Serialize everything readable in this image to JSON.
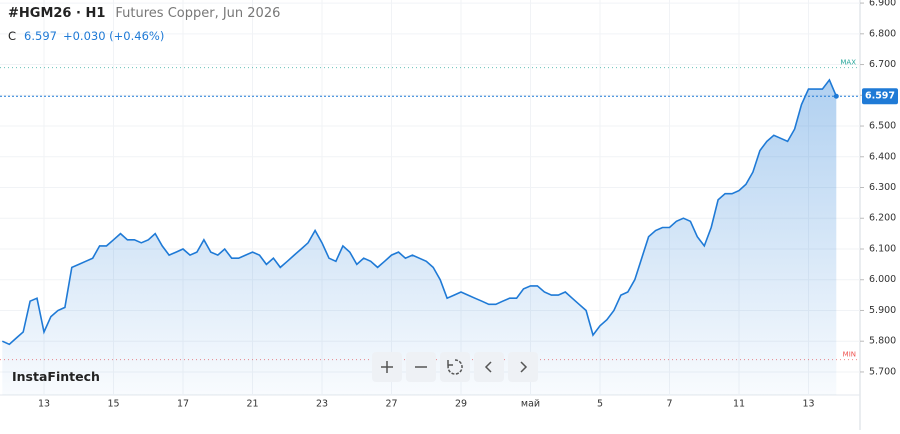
{
  "header": {
    "symbol": "#HGM26 · H1",
    "description": "Futures Copper, Jun 2026",
    "close_label": "C",
    "change": "+0.030 (+0.46%)"
  },
  "watermark": "InstaFintech",
  "chart_data": {
    "type": "area",
    "categories": [
      null,
      null,
      null,
      null,
      null,
      null,
      "13",
      null,
      null,
      null,
      null,
      null,
      null,
      null,
      null,
      null,
      "15",
      null,
      null,
      null,
      null,
      null,
      null,
      null,
      null,
      null,
      "17",
      null,
      null,
      null,
      null,
      null,
      null,
      null,
      null,
      null,
      "21",
      null,
      null,
      null,
      null,
      null,
      null,
      null,
      null,
      null,
      "23",
      null,
      null,
      null,
      null,
      null,
      null,
      null,
      null,
      null,
      "27",
      null,
      null,
      null,
      null,
      null,
      null,
      null,
      null,
      null,
      "29",
      null,
      null,
      null,
      null,
      null,
      null,
      null,
      null,
      null,
      "май",
      null,
      null,
      null,
      null,
      null,
      null,
      null,
      null,
      null,
      "5",
      null,
      null,
      null,
      null,
      null,
      null,
      null,
      null,
      null,
      "7",
      null,
      null,
      null,
      null,
      null,
      null,
      null,
      null,
      null,
      "11",
      null,
      null,
      null,
      null,
      null,
      null,
      null,
      null,
      null,
      "13",
      null,
      null,
      null,
      null
    ],
    "series": [
      {
        "name": "#HGM26",
        "color": "#1f7ad6",
        "values": [
          5.8,
          5.79,
          5.81,
          5.83,
          5.93,
          5.94,
          5.83,
          5.88,
          5.9,
          5.91,
          6.04,
          6.05,
          6.06,
          6.07,
          6.11,
          6.11,
          6.13,
          6.15,
          6.13,
          6.13,
          6.12,
          6.13,
          6.15,
          6.11,
          6.08,
          6.09,
          6.1,
          6.08,
          6.09,
          6.13,
          6.09,
          6.08,
          6.1,
          6.07,
          6.07,
          6.08,
          6.09,
          6.08,
          6.05,
          6.07,
          6.04,
          6.06,
          6.08,
          6.1,
          6.12,
          6.16,
          6.12,
          6.07,
          6.06,
          6.11,
          6.09,
          6.05,
          6.07,
          6.06,
          6.04,
          6.06,
          6.08,
          6.09,
          6.07,
          6.08,
          6.07,
          6.06,
          6.04,
          6.0,
          5.94,
          5.95,
          5.96,
          5.95,
          5.94,
          5.93,
          5.92,
          5.92,
          5.93,
          5.94,
          5.94,
          5.97,
          5.98,
          5.98,
          5.96,
          5.95,
          5.95,
          5.96,
          5.94,
          5.92,
          5.9,
          5.82,
          5.85,
          5.87,
          5.9,
          5.95,
          5.96,
          6.0,
          6.07,
          6.14,
          6.16,
          6.17,
          6.17,
          6.19,
          6.2,
          6.19,
          6.14,
          6.11,
          6.17,
          6.26,
          6.28,
          6.28,
          6.29,
          6.31,
          6.35,
          6.42,
          6.45,
          6.47,
          6.46,
          6.45,
          6.49,
          6.57,
          6.62,
          6.62,
          6.62,
          6.65,
          6.597
        ]
      }
    ],
    "ylim": [
      5.625,
      6.91
    ],
    "yticks": [
      {
        "value": 5.7,
        "label": "5.700"
      },
      {
        "value": 5.8,
        "label": "5.800"
      },
      {
        "value": 5.9,
        "label": "5.900"
      },
      {
        "value": 6.0,
        "label": "6.000"
      },
      {
        "value": 6.1,
        "label": "6.100"
      },
      {
        "value": 6.2,
        "label": "6.200"
      },
      {
        "value": 6.3,
        "label": "6.300"
      },
      {
        "value": 6.4,
        "label": "6.400"
      },
      {
        "value": 6.5,
        "label": "6.500"
      },
      {
        "value": 6.6,
        "label": "6.600"
      },
      {
        "value": 6.7,
        "label": "6.700"
      },
      {
        "value": 6.8,
        "label": "6.800"
      },
      {
        "value": 6.9,
        "label": "6.900"
      }
    ],
    "max_line": {
      "label": "MAX",
      "value": 6.69,
      "color": "#26a69a"
    },
    "min_line": {
      "label": "MIN",
      "value": 5.74,
      "color": "#ef5350"
    },
    "grid": true
  }
}
